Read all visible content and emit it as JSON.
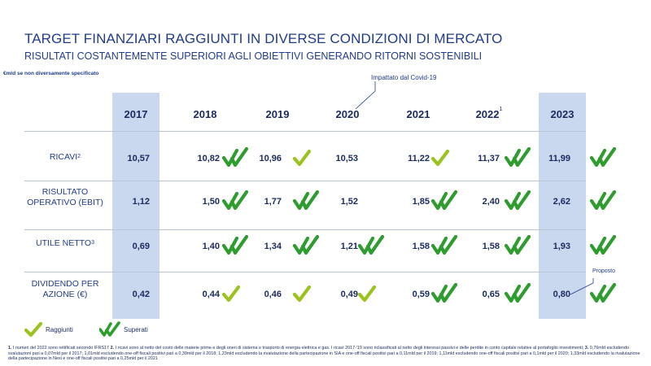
{
  "header": {
    "title": "TARGET FINANZIARI RAGGIUNTI IN DIVERSE CONDIZIONI DI MERCATO",
    "subtitle": "RISULTATI COSTANTEMENTE SUPERIORI AGLI OBIETTIVI GENERANDO RITORNI SOSTENIBILI",
    "unit_note": "€mld se non diversamente specificato"
  },
  "callout": "Impattato dal Covid-19",
  "proposed_note": "Proposto",
  "years": [
    "2017",
    "2018",
    "2019",
    "2020",
    "2021",
    "2022",
    "2023"
  ],
  "year_2022_sup": "1",
  "rows": [
    {
      "label": "RICAVI",
      "sup": "2",
      "values": [
        "10,57",
        "10,82",
        "10,96",
        "10,53",
        "11,22",
        "11,37",
        "11,99"
      ],
      "checks": [
        "none",
        "superati",
        "raggiunti",
        "none",
        "raggiunti",
        "superati",
        "superati"
      ]
    },
    {
      "label": "RISULTATO OPERATIVO (EBIT)",
      "sup": "",
      "values": [
        "1,12",
        "1,50",
        "1,77",
        "1,52",
        "1,85",
        "2,40",
        "2,62"
      ],
      "checks": [
        "none",
        "superati",
        "superati",
        "none",
        "superati",
        "superati",
        "superati"
      ]
    },
    {
      "label": "UTILE NETTO",
      "sup": "3",
      "values": [
        "0,69",
        "1,40",
        "1,34",
        "1,21",
        "1,58",
        "1,58",
        "1,93"
      ],
      "checks": [
        "none",
        "superati",
        "superati",
        "superati",
        "superati",
        "superati",
        "superati"
      ]
    },
    {
      "label": "DIVIDENDO PER AZIONE (€)",
      "sup": "",
      "values": [
        "0,42",
        "0,44",
        "0,46",
        "0,49",
        "0,59",
        "0,65",
        "0,80"
      ],
      "checks": [
        "none",
        "raggiunti",
        "raggiunti",
        "raggiunti",
        "superati",
        "superati",
        "superati"
      ]
    }
  ],
  "legend": {
    "raggiunti": "Raggiunti",
    "superati": "Superati"
  },
  "colors": {
    "title": "#1f3c8c",
    "highlight_band": "#c9d7ef",
    "check_light": "#9bc31f",
    "check_dark": "#2e9c2e"
  },
  "footnote": {
    "n1": "1.",
    "t1": " I numeri del 2022 sono rettificati secondo IFRS17 ",
    "n2": "2.",
    "t2": " I ricavi sono al netto del costo delle materie prime e degli oneri di sistema e trasporto di energia elettrica e gas. I ricavi 2017-'19 sono riclassificati al netto degli interessi passivi e delle perdite in conto capitale relative al portafoglio investimenti; ",
    "n3": "3.",
    "t3": " 0,76mld escludendo svalutazioni pari a 0,07mld per il 2017; 1,01mld escludendo one-off fiscali positivi pari a 0,39mld per il 2018; 1,23mld escludendo la rivalutazione della partecipazione in SIA e one-off fiscali positivi pari a 0,11mld per il 2019; 1,11mld escludendo one-off fiscali positivi pari a 0,1mld per il 2020; 1,33mld escludendo la rivalutazione della partecipazione in Nexi e one-off fiscali positivi pari a 0,25mld per il 2021"
  }
}
